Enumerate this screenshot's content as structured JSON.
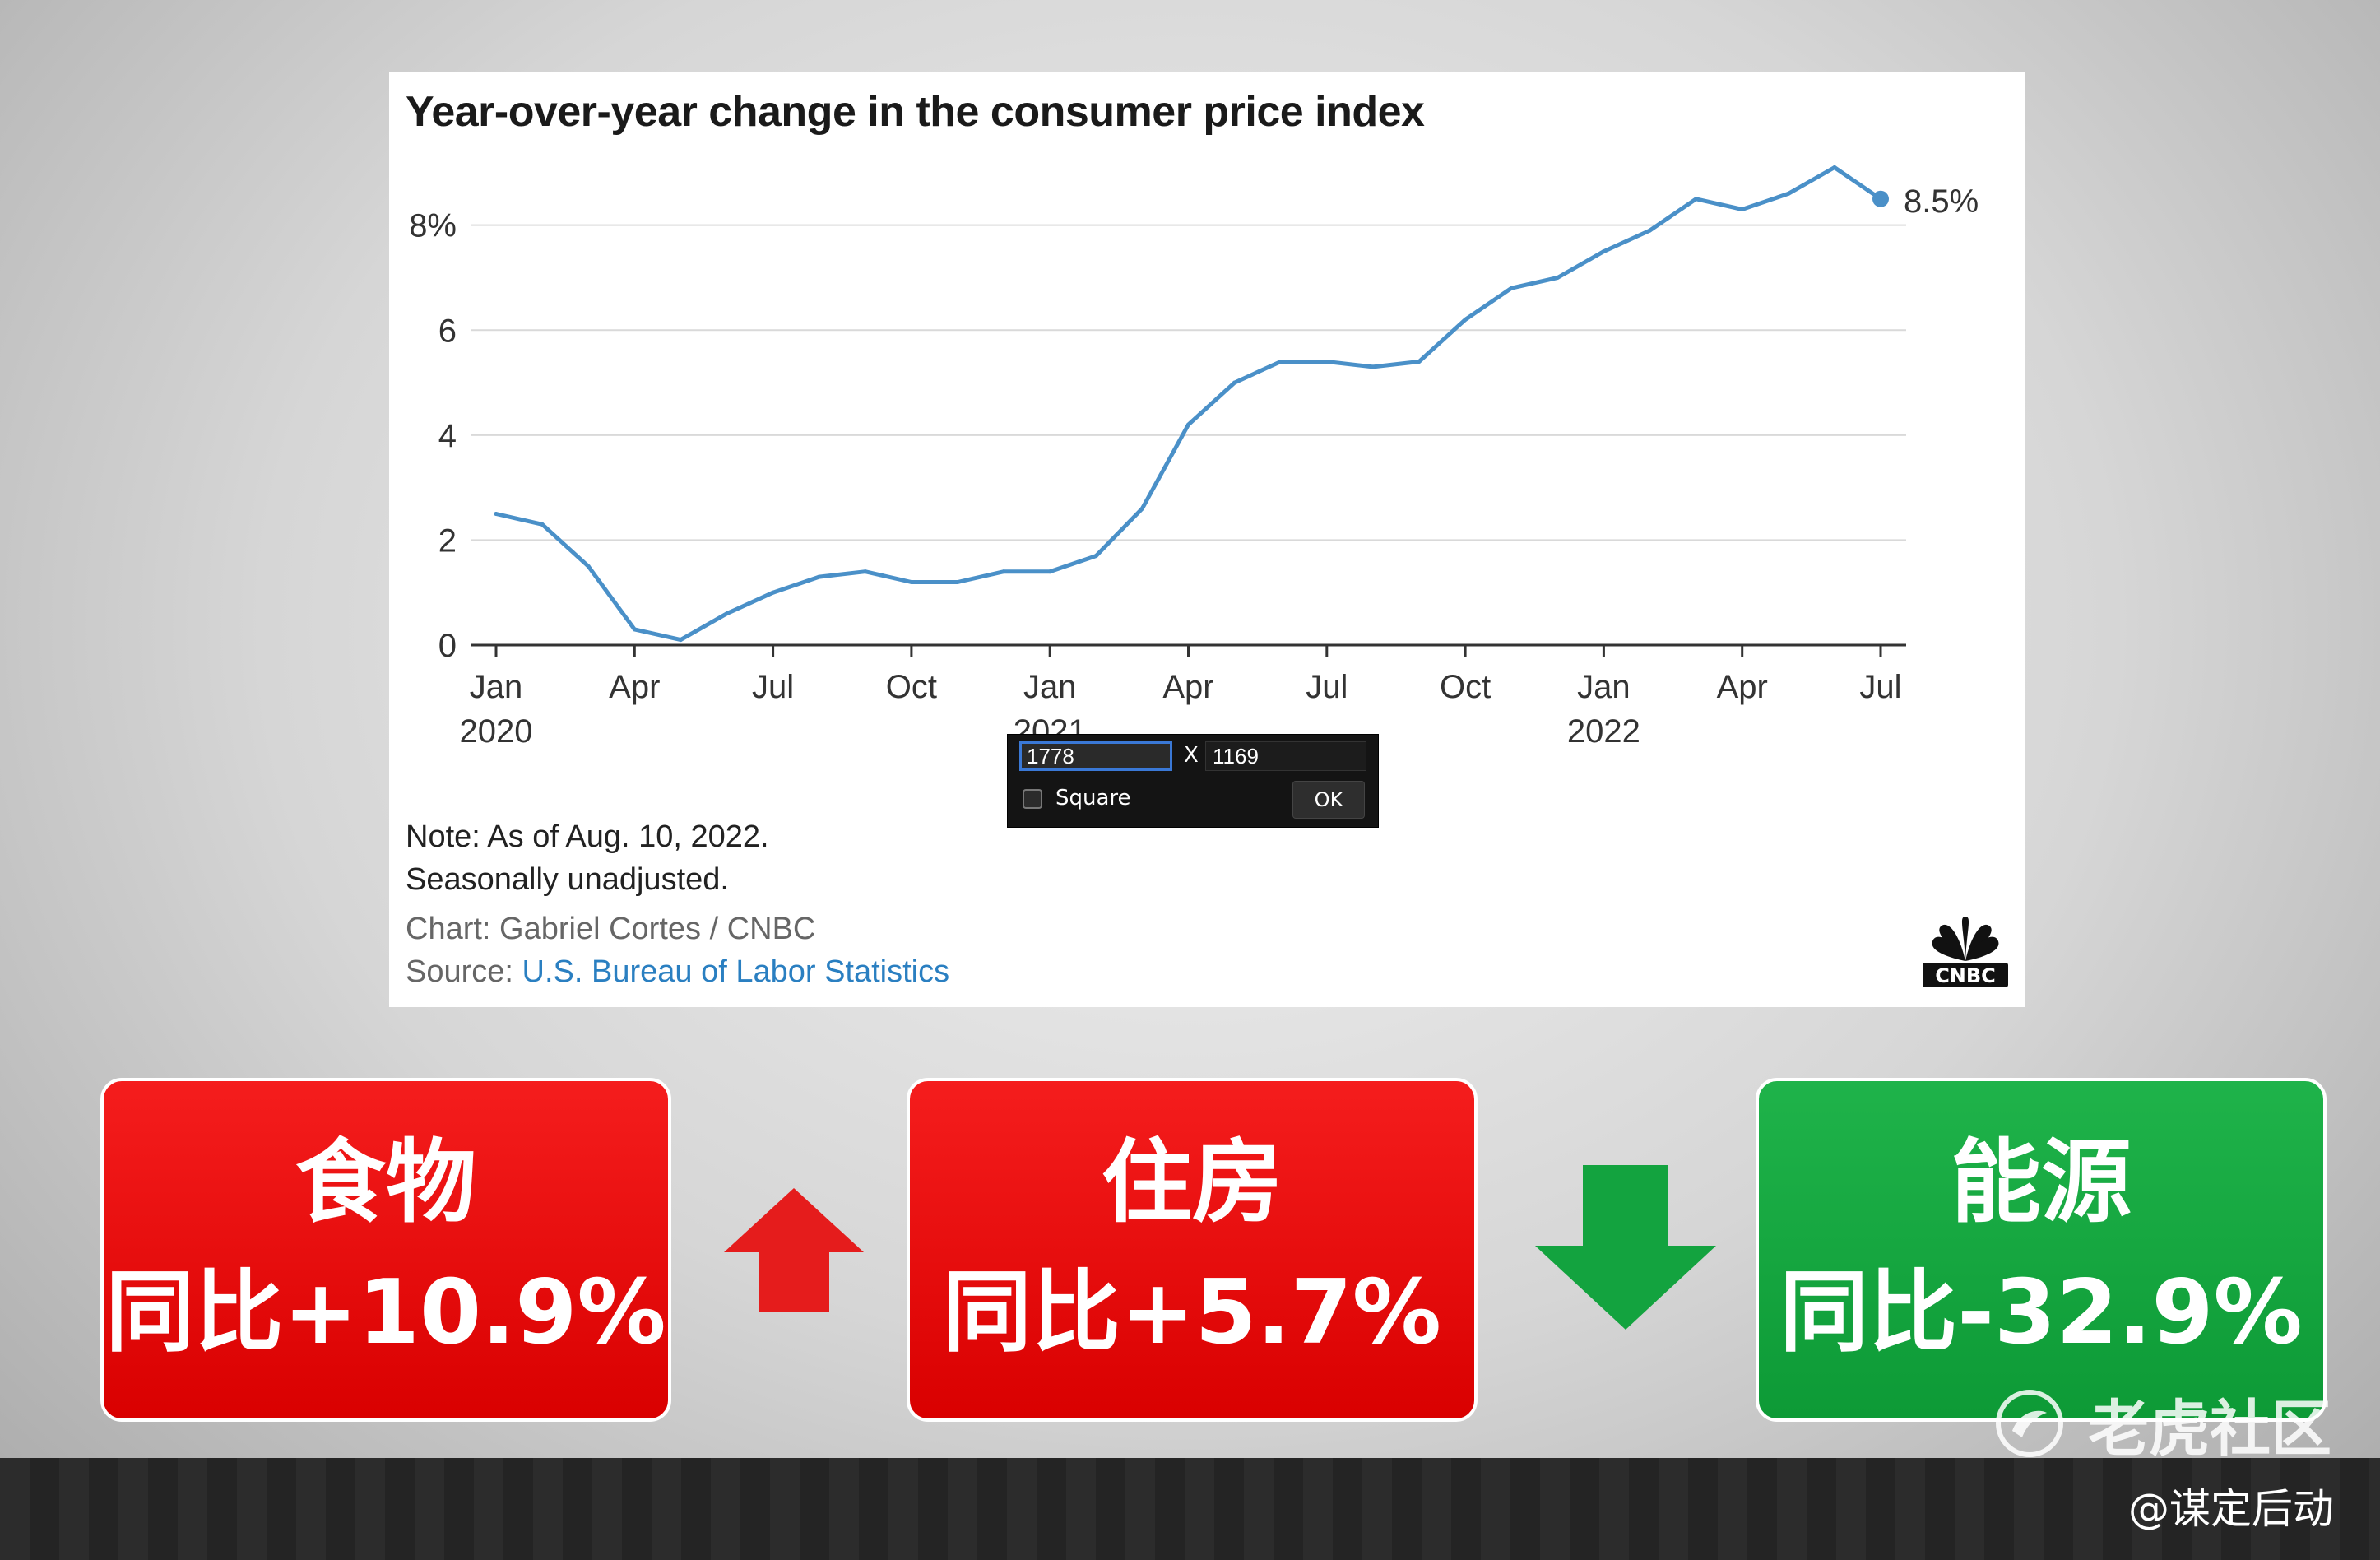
{
  "chart_data": {
    "type": "line",
    "title": "Year-over-year change in the consumer price index",
    "series": [
      {
        "values": [
          2.5,
          2.3,
          1.5,
          0.3,
          0.1,
          0.6,
          1.0,
          1.3,
          1.4,
          1.2,
          1.2,
          1.4,
          1.4,
          1.7,
          2.6,
          4.2,
          5.0,
          5.4,
          5.4,
          5.3,
          5.4,
          6.2,
          6.8,
          7.0,
          7.5,
          7.9,
          8.5,
          8.3,
          8.6,
          9.1,
          8.5
        ]
      }
    ],
    "x_start": "2020-01",
    "x_end": "2022-07",
    "frequency": "monthly",
    "x_ticks": [
      {
        "month": "Jan",
        "year": "2020"
      },
      {
        "month": "Apr",
        "year": ""
      },
      {
        "month": "Jul",
        "year": ""
      },
      {
        "month": "Oct",
        "year": ""
      },
      {
        "month": "Jan",
        "year": "2021"
      },
      {
        "month": "Apr",
        "year": ""
      },
      {
        "month": "Jul",
        "year": ""
      },
      {
        "month": "Oct",
        "year": ""
      },
      {
        "month": "Jan",
        "year": "2022"
      },
      {
        "month": "Apr",
        "year": ""
      },
      {
        "month": "Jul",
        "year": ""
      }
    ],
    "y_ticks": [
      "0",
      "2",
      "4",
      "6",
      "8%"
    ],
    "ylim": [
      0,
      9.5
    ],
    "end_label": "8.5%",
    "grid": true,
    "line_color": "#4a90c8"
  },
  "notes": {
    "line1": "Note: As of Aug. 10, 2022.",
    "line2": "Seasonally unadjusted.",
    "credit": "Chart: Gabriel Cortes / CNBC",
    "source_prefix": "Source: ",
    "source_link": "U.S. Bureau of Labor Statistics",
    "logo_text": "CNBC"
  },
  "size_dialog": {
    "width_value": "1778",
    "separator": "X",
    "height_value": "1169",
    "square_label": "Square",
    "ok_label": "OK"
  },
  "stats": {
    "food": {
      "label": "食物",
      "value": "同比+10.9%"
    },
    "housing": {
      "label": "住房",
      "value": "同比+5.7%"
    },
    "energy": {
      "label": "能源",
      "value": "同比-32.9%"
    },
    "up_color": "#e51c1c",
    "down_color": "#13a33f"
  },
  "watermark": {
    "text": "老虎社区"
  },
  "account": {
    "handle": "@谋定后动"
  }
}
